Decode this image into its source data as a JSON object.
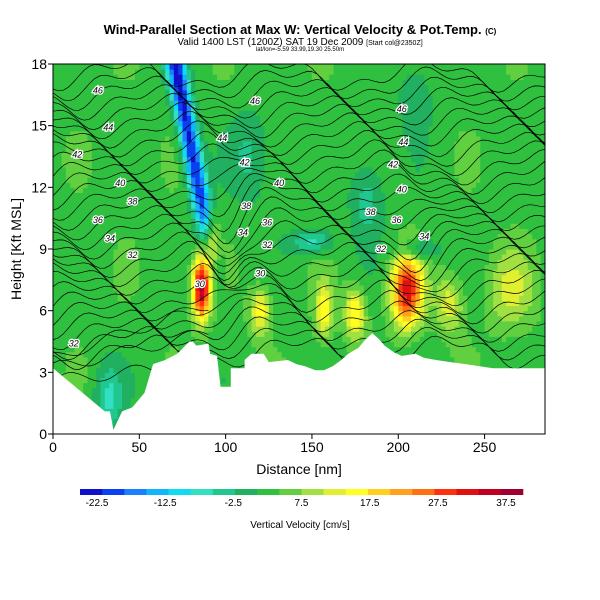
{
  "title": "Wind-Parallel Section at Max W: Vertical Velocity & Pot.Temp.",
  "title_mark": "(C)",
  "subtitle": "Valid 1400 LST (1200Z) SAT 19 Dec 2009",
  "subtitle_note": "[Start col@2350Z]",
  "subtitle2": "lat/lon=-5.59 33.99,19.30 25.50m",
  "chart_data": {
    "type": "heatmap",
    "xlabel": "Distance [nm]",
    "ylabel": "Height [Kft MSL]",
    "xlim": [
      0,
      285
    ],
    "ylim": [
      0,
      18
    ],
    "x_ticks": [
      0,
      50,
      100,
      150,
      200,
      250
    ],
    "y_ticks": [
      0,
      3,
      6,
      9,
      12,
      15,
      18
    ],
    "grid": false,
    "colorbar": {
      "label": "Vertical Velocity [cm/s]",
      "ticks": [
        -22.5,
        -12.5,
        -2.5,
        7.5,
        17.5,
        27.5,
        37.5
      ],
      "range": [
        -25,
        40
      ],
      "colors": [
        "#1010c8",
        "#0a40f0",
        "#1a80ff",
        "#10b4ff",
        "#10dcf0",
        "#30e0c0",
        "#20c890",
        "#20b060",
        "#30c040",
        "#60d040",
        "#a0e040",
        "#e0f030",
        "#ffff20",
        "#ffd020",
        "#ffa020",
        "#ff7010",
        "#ff3010",
        "#e01010",
        "#c00020",
        "#a00030"
      ]
    },
    "potential_temperature_labels": [
      {
        "value": 46,
        "x": 26,
        "y": 16.7
      },
      {
        "value": 46,
        "x": 117,
        "y": 16.2
      },
      {
        "value": 46,
        "x": 202,
        "y": 15.8
      },
      {
        "value": 44,
        "x": 32,
        "y": 14.9
      },
      {
        "value": 44,
        "x": 98,
        "y": 14.4
      },
      {
        "value": 44,
        "x": 203,
        "y": 14.2
      },
      {
        "value": 42,
        "x": 14,
        "y": 13.6
      },
      {
        "value": 42,
        "x": 111,
        "y": 13.2
      },
      {
        "value": 42,
        "x": 197,
        "y": 13.1
      },
      {
        "value": 40,
        "x": 39,
        "y": 12.2
      },
      {
        "value": 40,
        "x": 131,
        "y": 12.2
      },
      {
        "value": 40,
        "x": 202,
        "y": 11.9
      },
      {
        "value": 38,
        "x": 46,
        "y": 11.3
      },
      {
        "value": 38,
        "x": 112,
        "y": 11.1
      },
      {
        "value": 38,
        "x": 184,
        "y": 10.8
      },
      {
        "value": 36,
        "x": 26,
        "y": 10.4
      },
      {
        "value": 36,
        "x": 124,
        "y": 10.3
      },
      {
        "value": 36,
        "x": 199,
        "y": 10.4
      },
      {
        "value": 34,
        "x": 33,
        "y": 9.5
      },
      {
        "value": 34,
        "x": 110,
        "y": 9.8
      },
      {
        "value": 34,
        "x": 215,
        "y": 9.6
      },
      {
        "value": 32,
        "x": 46,
        "y": 8.7
      },
      {
        "value": 32,
        "x": 124,
        "y": 9.2
      },
      {
        "value": 32,
        "x": 190,
        "y": 9.0
      },
      {
        "value": 30,
        "x": 85,
        "y": 7.3
      },
      {
        "value": 30,
        "x": 120,
        "y": 7.8
      },
      {
        "value": 32,
        "x": 12,
        "y": 4.4
      }
    ]
  }
}
